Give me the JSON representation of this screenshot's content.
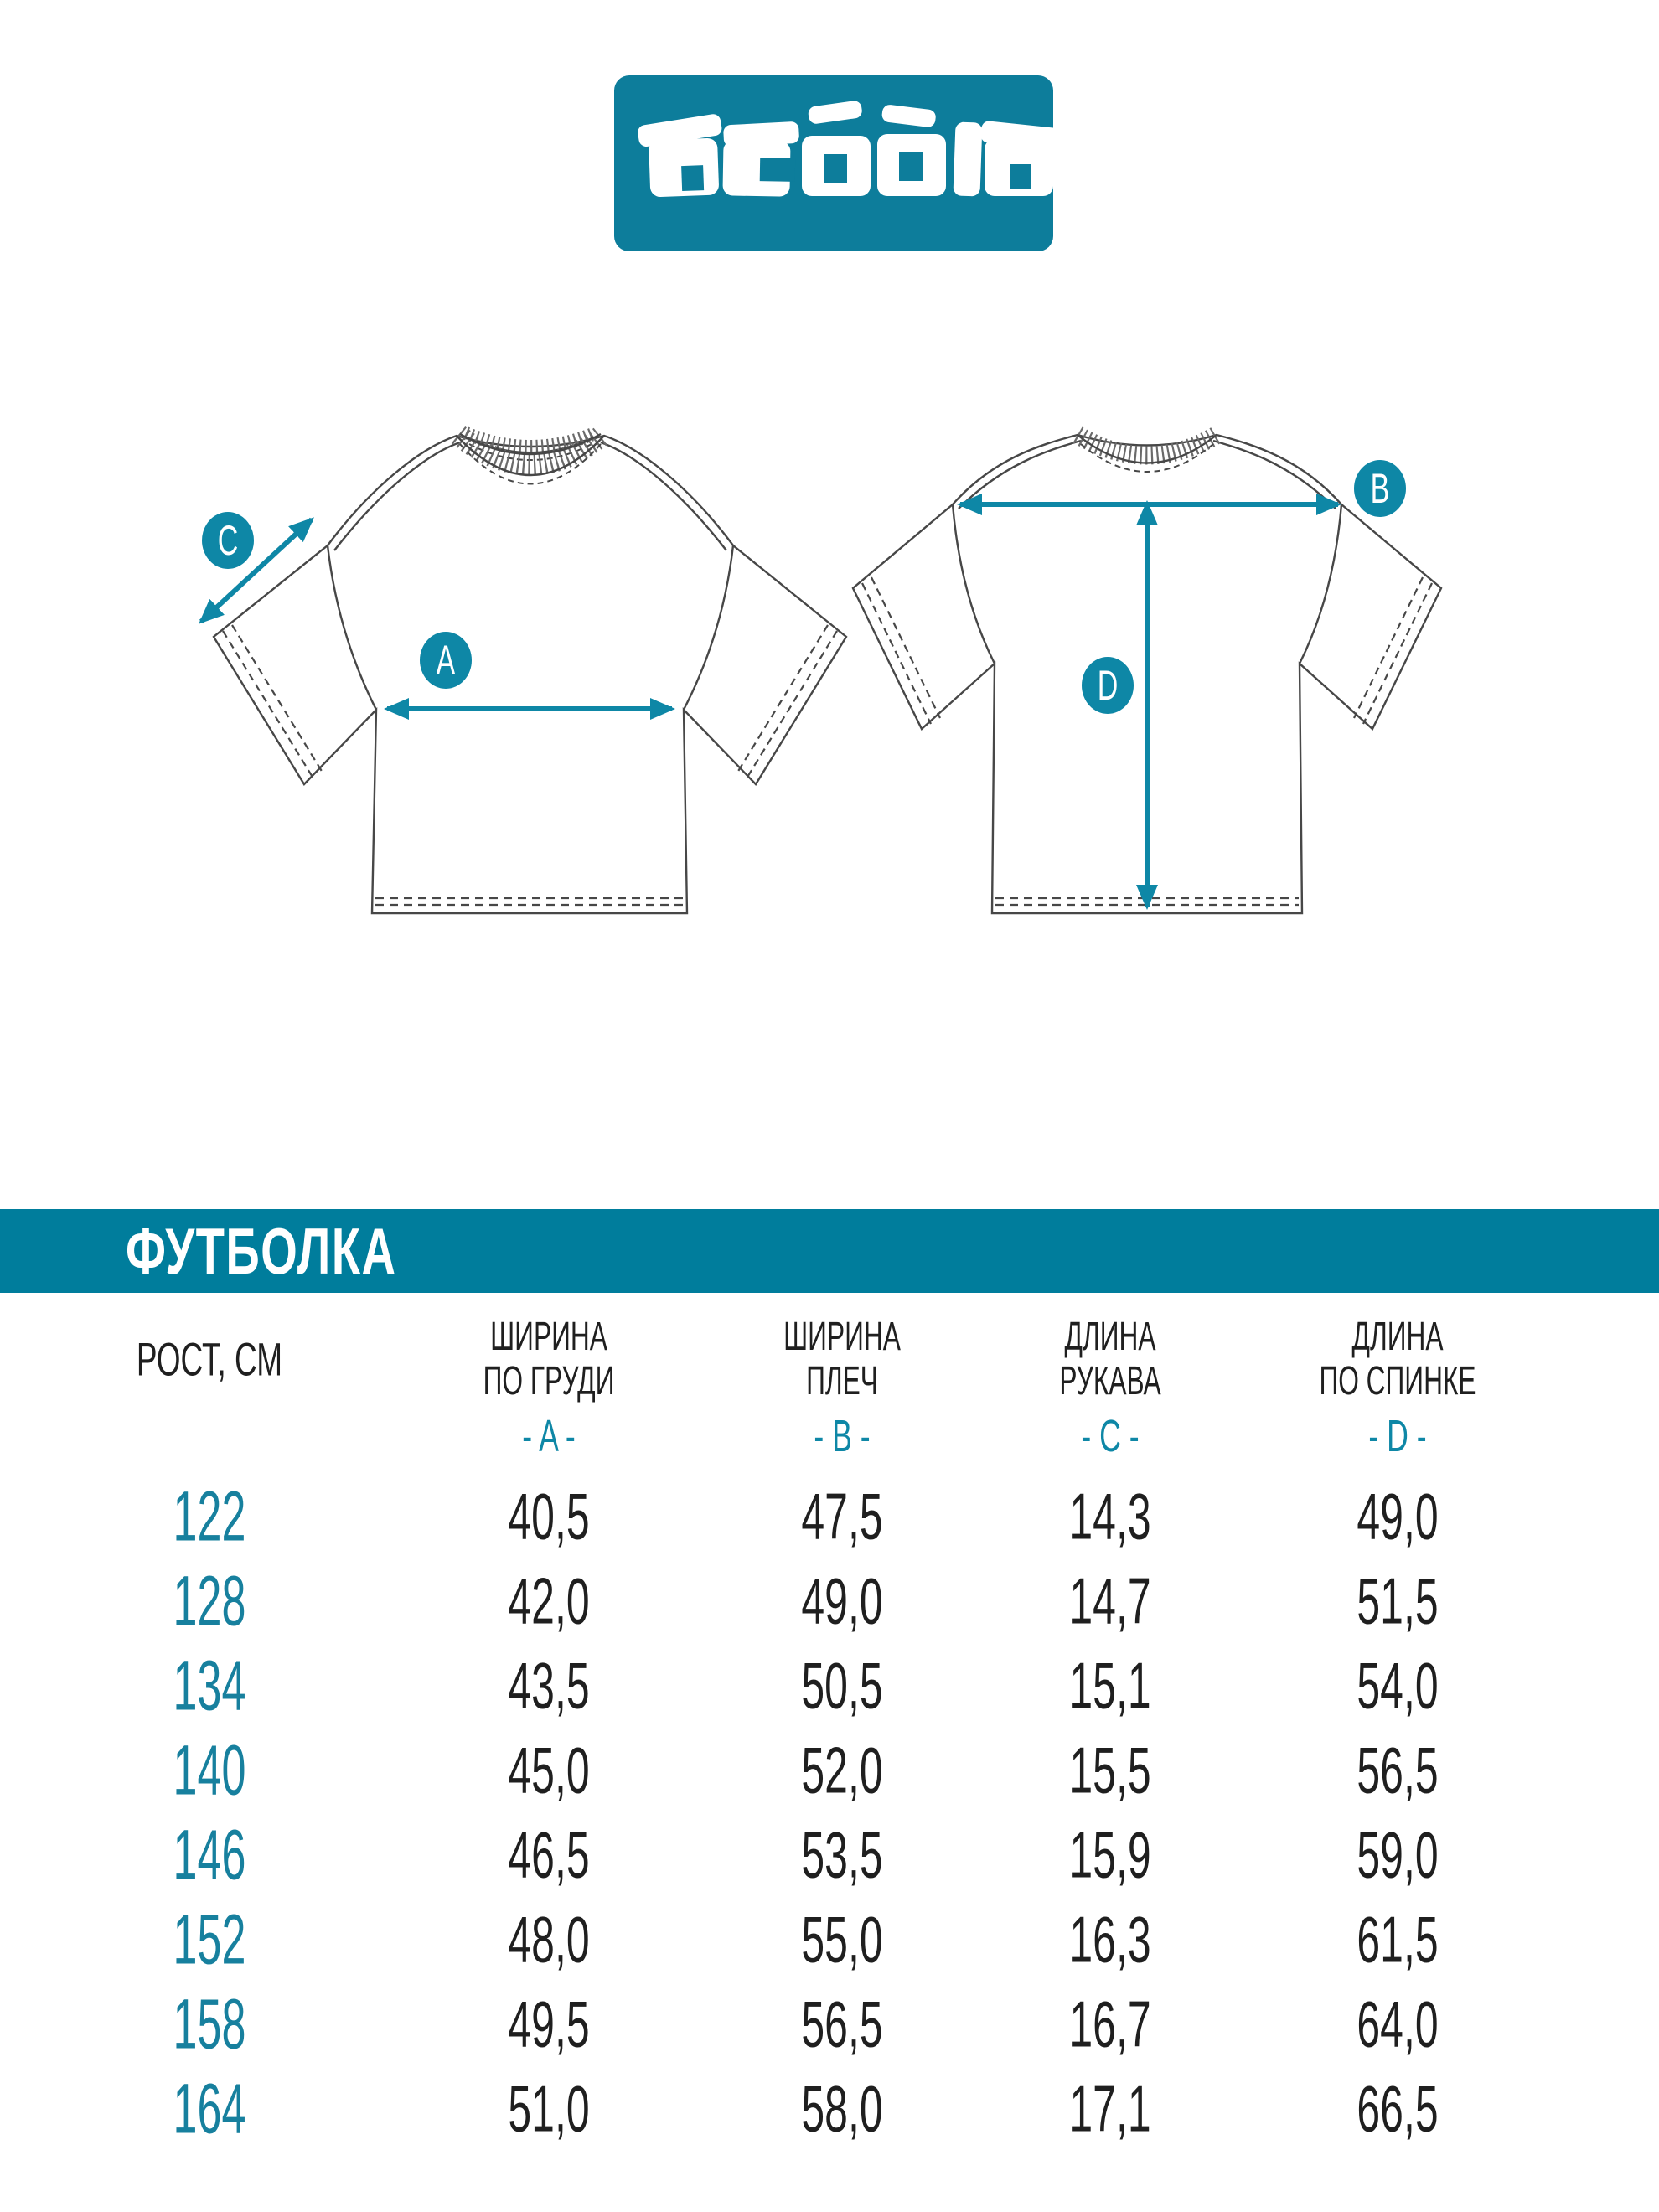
{
  "brand": {
    "name": "acoola"
  },
  "colors": {
    "teal_bar": "#007d9c",
    "logo_teal": "#0d7d9b",
    "accent_arrows": "#0e87a6",
    "size_number_teal": "#17809e",
    "ink": "#1f1f1f",
    "line_art": "#474747"
  },
  "diagram": {
    "views": [
      {
        "name": "front"
      },
      {
        "name": "back"
      }
    ],
    "measure_points": [
      "A",
      "B",
      "C",
      "D"
    ]
  },
  "table": {
    "title": "ФУТБОЛКА",
    "size_column_header": "РОСТ, СМ",
    "columns": [
      {
        "header_line1": "ШИРИНА",
        "header_line2": "ПО ГРУДИ",
        "letter": "A",
        "letter_display": "- A -"
      },
      {
        "header_line1": "ШИРИНА",
        "header_line2": "ПЛЕЧ",
        "letter": "B",
        "letter_display": "- B -"
      },
      {
        "header_line1": "ДЛИНА",
        "header_line2": "РУКАВА",
        "letter": "C",
        "letter_display": "- C -"
      },
      {
        "header_line1": "ДЛИНА",
        "header_line2": "ПО СПИНКЕ",
        "letter": "D",
        "letter_display": "- D -"
      }
    ],
    "rows": [
      {
        "size": "122",
        "values": [
          "40,5",
          "47,5",
          "14,3",
          "49,0"
        ]
      },
      {
        "size": "128",
        "values": [
          "42,0",
          "49,0",
          "14,7",
          "51,5"
        ]
      },
      {
        "size": "134",
        "values": [
          "43,5",
          "50,5",
          "15,1",
          "54,0"
        ]
      },
      {
        "size": "140",
        "values": [
          "45,0",
          "52,0",
          "15,5",
          "56,5"
        ]
      },
      {
        "size": "146",
        "values": [
          "46,5",
          "53,5",
          "15,9",
          "59,0"
        ]
      },
      {
        "size": "152",
        "values": [
          "48,0",
          "55,0",
          "16,3",
          "61,5"
        ]
      },
      {
        "size": "158",
        "values": [
          "49,5",
          "56,5",
          "16,7",
          "64,0"
        ]
      },
      {
        "size": "164",
        "values": [
          "51,0",
          "58,0",
          "17,1",
          "66,5"
        ]
      }
    ]
  },
  "chart_data": {
    "type": "table",
    "title": "ФУТБОЛКА",
    "categories": [
      "122",
      "128",
      "134",
      "140",
      "146",
      "152",
      "158",
      "164"
    ],
    "series": [
      {
        "name": "ШИРИНА ПО ГРУДИ (A)",
        "values": [
          40.5,
          42.0,
          43.5,
          45.0,
          46.5,
          48.0,
          49.5,
          51.0
        ]
      },
      {
        "name": "ШИРИНА ПЛЕЧ (B)",
        "values": [
          47.5,
          49.0,
          50.5,
          52.0,
          53.5,
          55.0,
          56.5,
          58.0
        ]
      },
      {
        "name": "ДЛИНА РУКАВА (C)",
        "values": [
          14.3,
          14.7,
          15.1,
          15.5,
          15.9,
          16.3,
          16.7,
          17.1
        ]
      },
      {
        "name": "ДЛИНА ПО СПИНКЕ (D)",
        "values": [
          49.0,
          51.5,
          54.0,
          56.5,
          59.0,
          61.5,
          64.0,
          66.5
        ]
      }
    ],
    "xlabel": "РОСТ, СМ",
    "ylabel": "СМ"
  }
}
